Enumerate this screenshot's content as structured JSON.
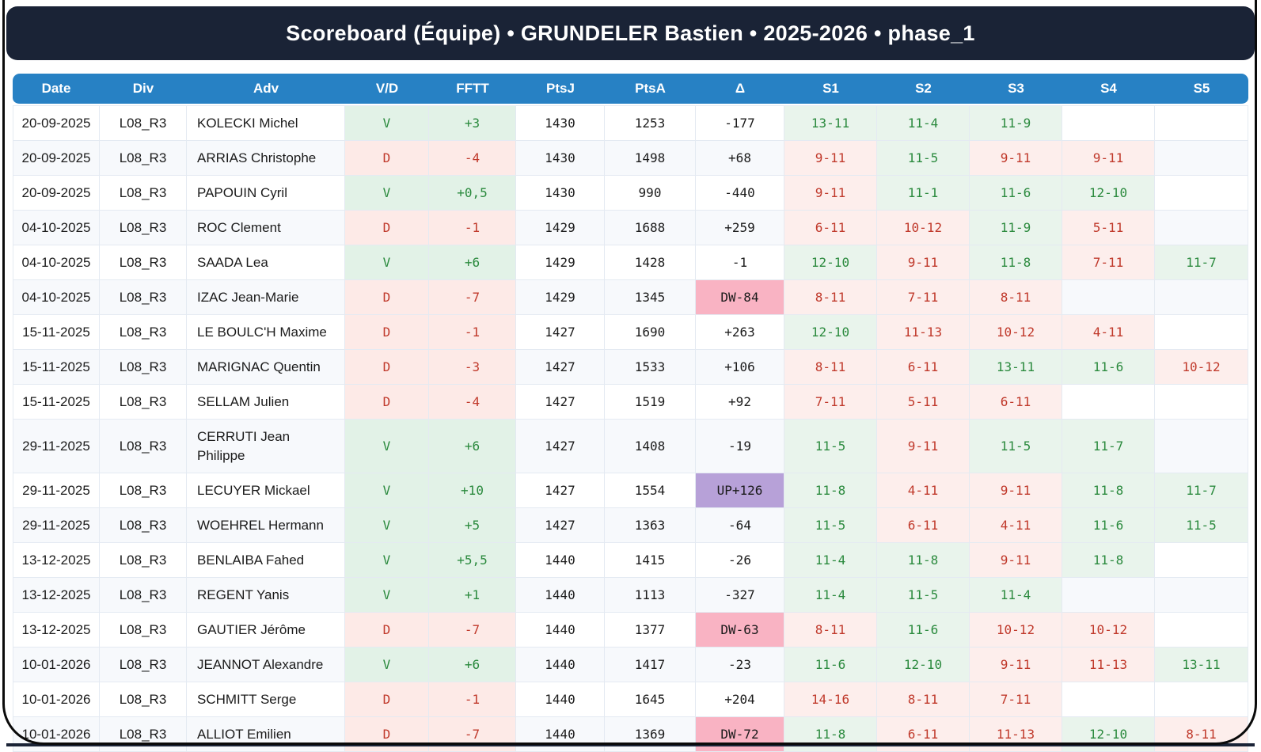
{
  "title": "Scoreboard (Équipe) • GRUNDELER Bastien • 2025-2026 • phase_1",
  "table": {
    "columns": [
      "Date",
      "Div",
      "Adv",
      "V/D",
      "FFTT",
      "PtsJ",
      "PtsA",
      "Δ",
      "S1",
      "S2",
      "S3",
      "S4",
      "S5"
    ],
    "rows": [
      {
        "date": "20-09-2025",
        "div": "L08_R3",
        "adv": "KOLECKI Michel",
        "vd": "V",
        "fftt": "+3",
        "ptsj": "1430",
        "ptsa": "1253",
        "delta": "-177",
        "sets": [
          "13-11",
          "11-4",
          "11-9",
          "",
          ""
        ]
      },
      {
        "date": "20-09-2025",
        "div": "L08_R3",
        "adv": "ARRIAS Christophe",
        "vd": "D",
        "fftt": "-4",
        "ptsj": "1430",
        "ptsa": "1498",
        "delta": "+68",
        "sets": [
          "9-11",
          "11-5",
          "9-11",
          "9-11",
          ""
        ]
      },
      {
        "date": "20-09-2025",
        "div": "L08_R3",
        "adv": "PAPOUIN Cyril",
        "vd": "V",
        "fftt": "+0,5",
        "ptsj": "1430",
        "ptsa": "990",
        "delta": "-440",
        "sets": [
          "9-11",
          "11-1",
          "11-6",
          "12-10",
          ""
        ]
      },
      {
        "date": "04-10-2025",
        "div": "L08_R3",
        "adv": "ROC Clement",
        "vd": "D",
        "fftt": "-1",
        "ptsj": "1429",
        "ptsa": "1688",
        "delta": "+259",
        "sets": [
          "6-11",
          "10-12",
          "11-9",
          "5-11",
          ""
        ]
      },
      {
        "date": "04-10-2025",
        "div": "L08_R3",
        "adv": "SAADA Lea",
        "vd": "V",
        "fftt": "+6",
        "ptsj": "1429",
        "ptsa": "1428",
        "delta": "-1",
        "sets": [
          "12-10",
          "9-11",
          "11-8",
          "7-11",
          "11-7"
        ]
      },
      {
        "date": "04-10-2025",
        "div": "L08_R3",
        "adv": "IZAC Jean-Marie",
        "vd": "D",
        "fftt": "-7",
        "ptsj": "1429",
        "ptsa": "1345",
        "delta": "DW-84",
        "sets": [
          "8-11",
          "7-11",
          "8-11",
          "",
          ""
        ]
      },
      {
        "date": "15-11-2025",
        "div": "L08_R3",
        "adv": "LE BOULC'H Maxime",
        "vd": "D",
        "fftt": "-1",
        "ptsj": "1427",
        "ptsa": "1690",
        "delta": "+263",
        "sets": [
          "12-10",
          "11-13",
          "10-12",
          "4-11",
          ""
        ]
      },
      {
        "date": "15-11-2025",
        "div": "L08_R3",
        "adv": "MARIGNAC Quentin",
        "vd": "D",
        "fftt": "-3",
        "ptsj": "1427",
        "ptsa": "1533",
        "delta": "+106",
        "sets": [
          "8-11",
          "6-11",
          "13-11",
          "11-6",
          "10-12"
        ]
      },
      {
        "date": "15-11-2025",
        "div": "L08_R3",
        "adv": "SELLAM Julien",
        "vd": "D",
        "fftt": "-4",
        "ptsj": "1427",
        "ptsa": "1519",
        "delta": "+92",
        "sets": [
          "7-11",
          "5-11",
          "6-11",
          "",
          ""
        ]
      },
      {
        "date": "29-11-2025",
        "div": "L08_R3",
        "adv": "CERRUTI Jean Philippe",
        "vd": "V",
        "fftt": "+6",
        "ptsj": "1427",
        "ptsa": "1408",
        "delta": "-19",
        "sets": [
          "11-5",
          "9-11",
          "11-5",
          "11-7",
          ""
        ]
      },
      {
        "date": "29-11-2025",
        "div": "L08_R3",
        "adv": "LECUYER Mickael",
        "vd": "V",
        "fftt": "+10",
        "ptsj": "1427",
        "ptsa": "1554",
        "delta": "UP+126",
        "sets": [
          "11-8",
          "4-11",
          "9-11",
          "11-8",
          "11-7"
        ]
      },
      {
        "date": "29-11-2025",
        "div": "L08_R3",
        "adv": "WOEHREL Hermann",
        "vd": "V",
        "fftt": "+5",
        "ptsj": "1427",
        "ptsa": "1363",
        "delta": "-64",
        "sets": [
          "11-5",
          "6-11",
          "4-11",
          "11-6",
          "11-5"
        ]
      },
      {
        "date": "13-12-2025",
        "div": "L08_R3",
        "adv": "BENLAIBA Fahed",
        "vd": "V",
        "fftt": "+5,5",
        "ptsj": "1440",
        "ptsa": "1415",
        "delta": "-26",
        "sets": [
          "11-4",
          "11-8",
          "9-11",
          "11-8",
          ""
        ]
      },
      {
        "date": "13-12-2025",
        "div": "L08_R3",
        "adv": "REGENT Yanis",
        "vd": "V",
        "fftt": "+1",
        "ptsj": "1440",
        "ptsa": "1113",
        "delta": "-327",
        "sets": [
          "11-4",
          "11-5",
          "11-4",
          "",
          ""
        ]
      },
      {
        "date": "13-12-2025",
        "div": "L08_R3",
        "adv": "GAUTIER Jérôme",
        "vd": "D",
        "fftt": "-7",
        "ptsj": "1440",
        "ptsa": "1377",
        "delta": "DW-63",
        "sets": [
          "8-11",
          "11-6",
          "10-12",
          "10-12",
          ""
        ]
      },
      {
        "date": "10-01-2026",
        "div": "L08_R3",
        "adv": "JEANNOT Alexandre",
        "vd": "V",
        "fftt": "+6",
        "ptsj": "1440",
        "ptsa": "1417",
        "delta": "-23",
        "sets": [
          "11-6",
          "12-10",
          "9-11",
          "11-13",
          "13-11"
        ]
      },
      {
        "date": "10-01-2026",
        "div": "L08_R3",
        "adv": "SCHMITT Serge",
        "vd": "D",
        "fftt": "-1",
        "ptsj": "1440",
        "ptsa": "1645",
        "delta": "+204",
        "sets": [
          "14-16",
          "8-11",
          "7-11",
          "",
          ""
        ]
      },
      {
        "date": "10-01-2026",
        "div": "L08_R3",
        "adv": "ALLIOT Emilien",
        "vd": "D",
        "fftt": "-7",
        "ptsj": "1440",
        "ptsa": "1369",
        "delta": "DW-72",
        "sets": [
          "11-8",
          "6-11",
          "11-13",
          "12-10",
          "8-11"
        ]
      }
    ]
  },
  "colors": {
    "title_bar_navy": "#1a2336",
    "table_header_blue": "#2781c4",
    "win_text_green": "#2b8a3e",
    "loss_text_red": "#c0392b",
    "win_block_bg": "#e2f2e7",
    "loss_block_bg": "#fdeae7",
    "set_win_bg": "#e9f4ec",
    "set_loss_bg": "#fdeeec",
    "delta_down_pink": "#f9b3c3",
    "delta_up_purple": "#b7a1d8",
    "row_alt_bg": "#f7f9fc"
  }
}
